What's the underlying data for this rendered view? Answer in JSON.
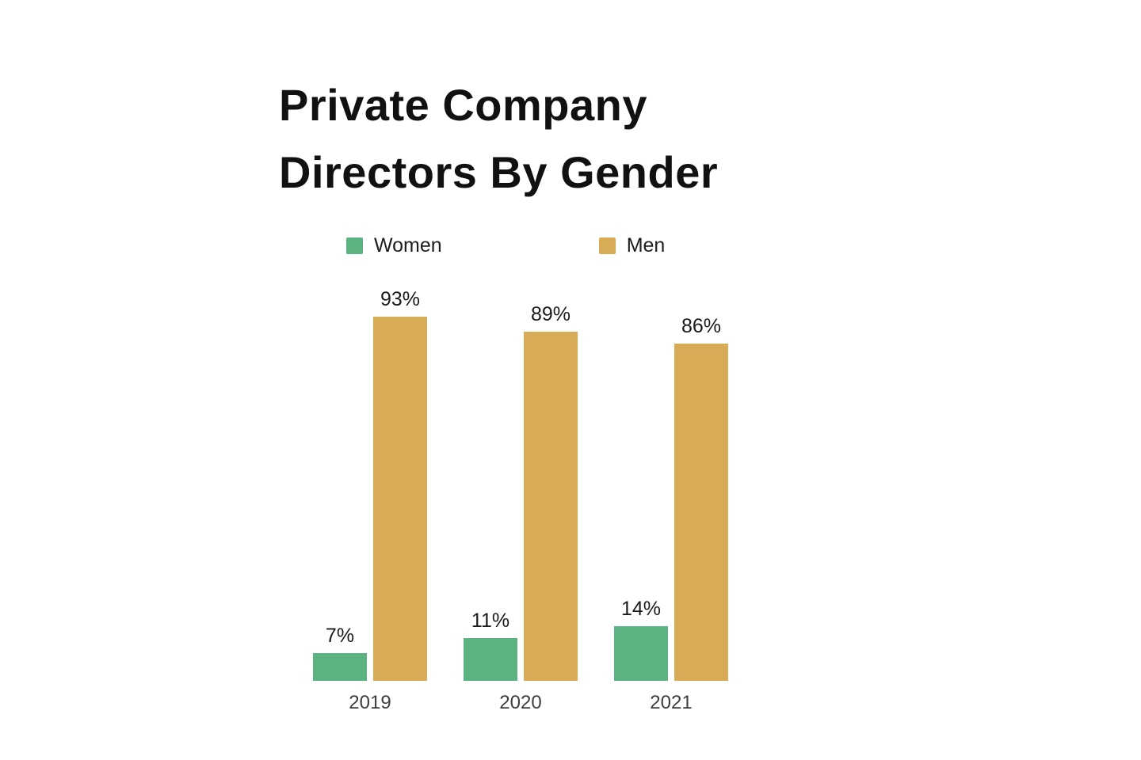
{
  "chart": {
    "title_line1": "Private Company",
    "title_line2": "Directors By Gender"
  },
  "chart_data": {
    "type": "bar",
    "title": "Private Company Directors By Gender",
    "categories": [
      "2019",
      "2020",
      "2021"
    ],
    "series": [
      {
        "name": "Women",
        "color": "#5bb381",
        "values": [
          7,
          11,
          14
        ],
        "labels": [
          "7%",
          "11%",
          "14%"
        ]
      },
      {
        "name": "Men",
        "color": "#d8ab57",
        "values": [
          93,
          89,
          86
        ],
        "labels": [
          "93%",
          "89%",
          "86%"
        ]
      }
    ],
    "ylim": [
      0,
      100
    ],
    "grid": false,
    "legend_position": "top",
    "value_label_suffix": "%"
  }
}
